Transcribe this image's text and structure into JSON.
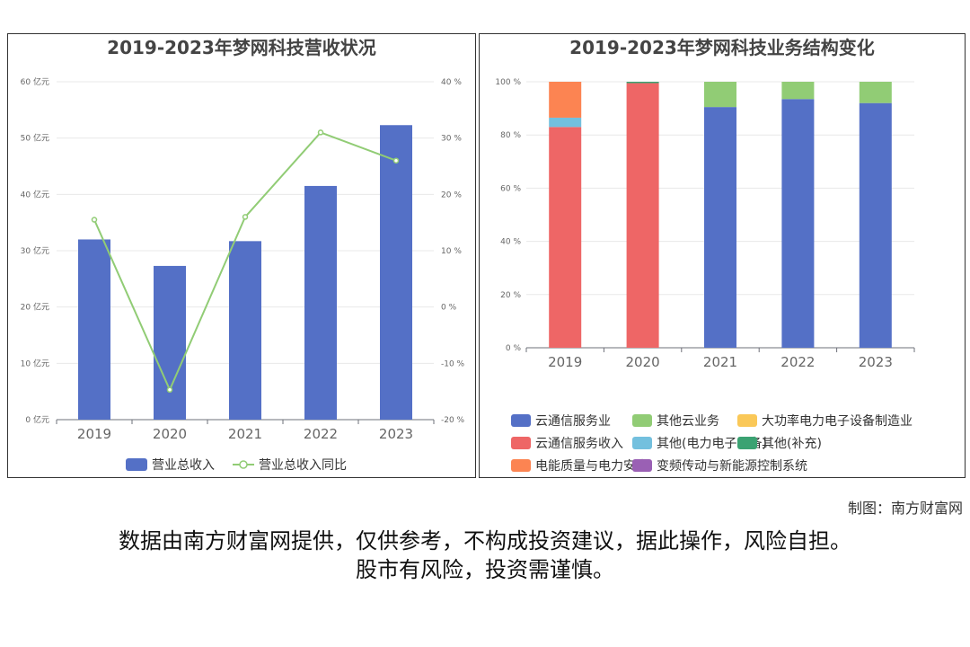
{
  "chart_data": [
    {
      "type": "bar+line",
      "title": "2019-2023年梦网科技营收状况",
      "categories": [
        "2019",
        "2020",
        "2021",
        "2022",
        "2023"
      ],
      "series": [
        {
          "name": "营业总收入",
          "type": "bar",
          "axis": "left",
          "values": [
            32.0,
            27.3,
            31.7,
            41.5,
            52.3
          ]
        },
        {
          "name": "营业总收入同比",
          "type": "line",
          "axis": "right",
          "values": [
            15.5,
            -14.7,
            16.0,
            31.0,
            26.0
          ]
        }
      ],
      "y_left": {
        "ylim": [
          0,
          60
        ],
        "ticks": [
          "0 亿元",
          "10 亿元",
          "20 亿元",
          "30 亿元",
          "40 亿元",
          "50 亿元",
          "60 亿元"
        ]
      },
      "y_right": {
        "ylim": [
          -20,
          40
        ],
        "ticks": [
          "-20 %",
          "-10 %",
          "0 %",
          "10 %",
          "20 %",
          "30 %",
          "40 %"
        ]
      },
      "grid": true,
      "legend_position": "bottom"
    },
    {
      "type": "stacked-bar",
      "title": "2019-2023年梦网科技业务结构变化",
      "categories": [
        "2019",
        "2020",
        "2021",
        "2022",
        "2023"
      ],
      "series": [
        {
          "name": "云通信服务业",
          "values": [
            0,
            0,
            90.5,
            93.5,
            92.0
          ]
        },
        {
          "name": "其他云业务",
          "values": [
            0,
            0,
            9.5,
            6.5,
            8.0
          ]
        },
        {
          "name": "大功率电力电子设备制造业",
          "values": [
            0,
            0,
            0,
            0,
            0
          ]
        },
        {
          "name": "云通信服务收入",
          "values": [
            83.0,
            99.5,
            0,
            0,
            0
          ]
        },
        {
          "name": "其他(电力电子设备)",
          "values": [
            3.5,
            0,
            0,
            0,
            0
          ]
        },
        {
          "name": "其他(补充)",
          "values": [
            0,
            0.5,
            0,
            0,
            0
          ]
        },
        {
          "name": "电能质量与电力安全",
          "values": [
            13.5,
            0,
            0,
            0,
            0
          ]
        },
        {
          "name": "变频传动与新能源控制系统",
          "values": [
            0,
            0,
            0,
            0,
            0
          ]
        }
      ],
      "y": {
        "ylim": [
          0,
          100
        ],
        "ticks": [
          "0 %",
          "20 %",
          "40 %",
          "60 %",
          "80 %",
          "100 %"
        ]
      },
      "grid": true,
      "legend_position": "bottom"
    }
  ],
  "colors": {
    "bar_blue": "#5470c6",
    "line_green": "#91cc75",
    "series": [
      "#5470c6",
      "#91cc75",
      "#fac858",
      "#ee6666",
      "#73c0de",
      "#3ba272",
      "#fc8452",
      "#9a60b4"
    ]
  },
  "footer": {
    "credit": "制图：南方财富网",
    "disclaimer_line1": "数据由南方财富网提供，仅供参考，不构成投资建议，据此操作，风险自担。",
    "disclaimer_line2": "股市有风险，投资需谨慎。"
  }
}
